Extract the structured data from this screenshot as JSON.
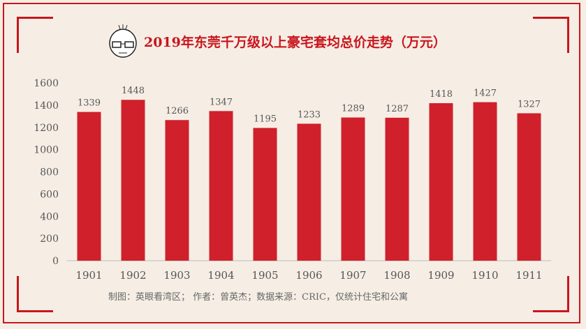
{
  "chart_data": {
    "type": "bar",
    "title": "2019年东莞千万级以上豪宅套均总价走势（万元）",
    "categories": [
      "1901",
      "1902",
      "1903",
      "1904",
      "1905",
      "1906",
      "1907",
      "1908",
      "1909",
      "1910",
      "1911"
    ],
    "values": [
      1339,
      1448,
      1266,
      1347,
      1195,
      1233,
      1289,
      1287,
      1418,
      1427,
      1327
    ],
    "ylim": [
      0,
      1600
    ],
    "yticks": [
      0,
      200,
      400,
      600,
      800,
      1000,
      1200,
      1400,
      1600
    ],
    "grid": false,
    "bar_color": "#d0202b"
  },
  "footer": "制图：英眼看湾区；  作者：曾英杰；数据来源：CRIC，仅统计住宅和公寓"
}
